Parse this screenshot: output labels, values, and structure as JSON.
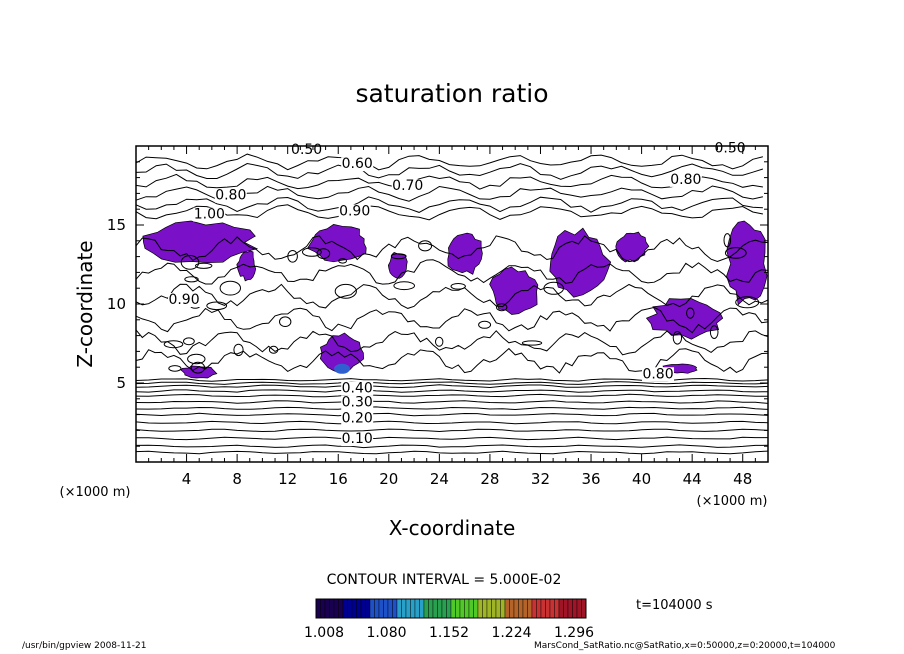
{
  "chart_data": {
    "type": "contour",
    "title": "saturation ratio",
    "xlabel": "X-coordinate",
    "ylabel": "Z-coordinate",
    "x_unit": "(×1000 m)",
    "y_unit": "(×1000 m)",
    "xlim": [
      0,
      50
    ],
    "ylim": [
      0,
      20
    ],
    "xticks": [
      4,
      8,
      12,
      16,
      20,
      24,
      28,
      32,
      36,
      40,
      44,
      48
    ],
    "yticks": [
      5,
      10,
      15
    ],
    "contour_labels": [
      {
        "text": "0.50",
        "x": 13.5,
        "y": 19.5
      },
      {
        "text": "0.60",
        "x": 17.5,
        "y": 18.6
      },
      {
        "text": "0.70",
        "x": 21.5,
        "y": 17.2
      },
      {
        "text": "0.80",
        "x": 7.5,
        "y": 16.6
      },
      {
        "text": "0.90",
        "x": 17.3,
        "y": 15.6
      },
      {
        "text": "1.00",
        "x": 5.8,
        "y": 15.4
      },
      {
        "text": "0.50",
        "x": 47.0,
        "y": 19.6
      },
      {
        "text": "0.80",
        "x": 43.5,
        "y": 17.6
      },
      {
        "text": "0.90",
        "x": 3.8,
        "y": 10.0
      },
      {
        "text": "0.80",
        "x": 41.3,
        "y": 5.3
      },
      {
        "text": "0.40",
        "x": 17.5,
        "y": 4.4
      },
      {
        "text": "0.30",
        "x": 17.5,
        "y": 3.5
      },
      {
        "text": "0.20",
        "x": 17.5,
        "y": 2.5
      },
      {
        "text": "0.10",
        "x": 17.5,
        "y": 1.2
      }
    ],
    "colorbar": {
      "ticks": [
        "1.008",
        "1.080",
        "1.152",
        "1.224",
        "1.296"
      ],
      "colors": [
        "#1a0050",
        "#000090",
        "#1e50c8",
        "#28a0c8",
        "#28a050",
        "#50c828",
        "#a0b428",
        "#b46428",
        "#c83232",
        "#a01428"
      ]
    },
    "contour_interval": "CONTOUR INTERVAL = 5.000E-02",
    "time_label": "t=104000 s",
    "fill_color": "#7a10c8"
  },
  "footer": {
    "left": "/usr/bin/gpview   2008-11-21",
    "right": "MarsCond_SatRatio.nc@SatRatio,x=0:50000,z=0:20000,t=104000"
  }
}
